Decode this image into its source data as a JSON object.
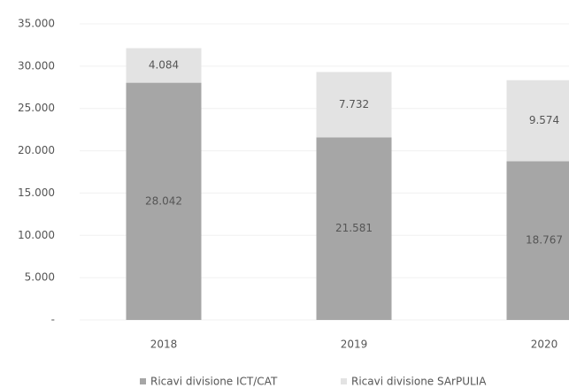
{
  "chart_data": {
    "type": "stacked_bar",
    "categories": [
      "2018",
      "2019",
      "2020"
    ],
    "series": [
      {
        "name": "Ricavi divisione ICT/CAT",
        "color": "#a6a6a6",
        "values": [
          28042,
          21581,
          18767
        ],
        "value_labels": [
          "28.042",
          "21.581",
          "18.767"
        ]
      },
      {
        "name": "Ricavi divisione SArPULIA",
        "color": "#e3e3e3",
        "values": [
          4084,
          7732,
          9574
        ],
        "value_labels": [
          "4.084",
          "7.732",
          "9.574"
        ]
      }
    ],
    "ylim": [
      0,
      35000
    ],
    "yticks": [
      {
        "value": 0,
        "label": "-"
      },
      {
        "value": 5000,
        "label": "5.000"
      },
      {
        "value": 10000,
        "label": "10.000"
      },
      {
        "value": 15000,
        "label": "15.000"
      },
      {
        "value": 20000,
        "label": "20.000"
      },
      {
        "value": 25000,
        "label": "25.000"
      },
      {
        "value": 30000,
        "label": "30.000"
      },
      {
        "value": 35000,
        "label": "35.000"
      }
    ],
    "grid": true
  }
}
